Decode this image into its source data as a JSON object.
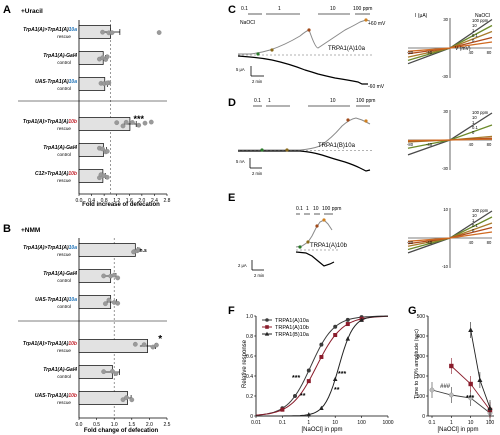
{
  "colors": {
    "bar": "#e2e2e2",
    "dot": "#9a9a9a",
    "trpa1a": "#3b3b3b",
    "trpa1b": "#8a1c2b",
    "trpa1b16a": "#222222",
    "blue": "#1b6fb5",
    "red": "#c0202a",
    "trace_grey": "#777777"
  },
  "panelA": {
    "letter": "A",
    "condition": "+Uracil",
    "xlabel": "Fold increase of defecation",
    "ticks": [
      "0.0",
      "0.4",
      "0.8",
      "1.2",
      "1.6",
      "2.0",
      "2.4",
      "2.8"
    ],
    "rows": [
      {
        "genotype": "TrpA1(A)>TrpA1(A)",
        "isoform": "10a",
        "sub": "rescue"
      },
      {
        "genotype": "TrpA1(A)-Gal4",
        "isoform": "",
        "sub": "control"
      },
      {
        "genotype": "UAS-TrpA1(A)",
        "isoform": "10a",
        "sub": "control"
      },
      {
        "genotype": "TrpA1(A)>TrpA1(A)",
        "isoform": "10b",
        "sub": "rescue"
      },
      {
        "genotype": "TrpA1(A)-Gal4",
        "isoform": "",
        "sub": "control"
      },
      {
        "genotype": "C12>TrpA1(A)",
        "isoform": "10b",
        "sub": "rescue"
      }
    ],
    "sig": "***"
  },
  "panelB": {
    "letter": "B",
    "condition": "+NMM",
    "xlabel": "Fold change of defecation",
    "ticks": [
      "0.0",
      "0.5",
      "1.0",
      "1.5",
      "2.0",
      "2.5"
    ],
    "rows": [
      {
        "genotype": "TrpA1(A)>TrpA1(A)",
        "isoform": "10a",
        "sub": "rescue"
      },
      {
        "genotype": "TrpA1(A)-Gal4",
        "isoform": "",
        "sub": "control"
      },
      {
        "genotype": "UAS-TrpA1(A)",
        "isoform": "10a",
        "sub": "control"
      },
      {
        "genotype": "TrpA1(A)>TrpA1(A)",
        "isoform": "10b",
        "sub": "rescue"
      },
      {
        "genotype": "TrpA1(A)-Gal4",
        "isoform": "",
        "sub": "control"
      },
      {
        "genotype": "UAS-TrpA1(A)",
        "isoform": "10b",
        "sub": "rescue"
      }
    ],
    "sig_top": "n.s",
    "sig": "*"
  },
  "panelC": {
    "letter": "C",
    "agent": "NaOCl",
    "doses": [
      "0.1",
      "1",
      "10",
      "100 ppm"
    ],
    "label": "TRPA1(A)10a",
    "vpos": "+60 mV",
    "vneg": "-60 mV",
    "scale_i": "5 μA",
    "scale_t": "2 min",
    "iv_title": "I (μA)",
    "iv_x": "V (mV)",
    "iv_agent": "NaOCl",
    "iv_doses": [
      "100 ppm",
      "10",
      "1",
      "0.1",
      "0"
    ]
  },
  "panelD": {
    "letter": "D",
    "doses": [
      "0.1",
      "1",
      "10",
      "100 ppm"
    ],
    "label": "TRPA1(B)10a",
    "scale_i": "5 nA",
    "scale_t": "2 min",
    "iv_doses": [
      "100 ppm",
      "10",
      "1",
      "0.1",
      "0"
    ]
  },
  "panelE": {
    "letter": "E",
    "doses": [
      "0.1",
      "1",
      "10",
      "100 ppm"
    ],
    "label": "TRPA1(A)10b",
    "scale_i": "2 μA",
    "scale_t": "2 min",
    "iv_doses": [
      "100 ppm",
      "10",
      "1",
      "0.1",
      "0"
    ]
  },
  "panelF": {
    "letter": "F",
    "ylabel": "Relative response",
    "xlabel": "[NaOCl] in ppm",
    "xticks": [
      "0.01",
      "0.1",
      "1",
      "10",
      "100",
      "1000"
    ],
    "yticks": [
      "0",
      "0.2",
      "0.4",
      "0.6",
      "0.8",
      "1.0"
    ],
    "legend": [
      "TRPA1(A)10a",
      "TRPA1(A)10b",
      "TRPA1(B)10a"
    ],
    "sig": [
      "***",
      "**",
      "**",
      "***"
    ]
  },
  "panelG": {
    "letter": "G",
    "ylabel": "Time to 70% amplitude (sec)",
    "xlabel": "[NaOCl] in ppm",
    "xticks": [
      "0.1",
      "1",
      "10",
      "100"
    ],
    "yticks": [
      "0",
      "100",
      "200",
      "300",
      "400",
      "500"
    ],
    "sig1": "###",
    "sig2": "***"
  }
}
